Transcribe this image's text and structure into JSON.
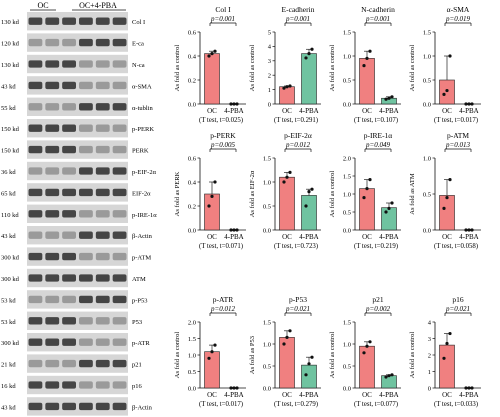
{
  "groups": [
    "OC",
    "OC+4-PBA"
  ],
  "colors": {
    "oc": "#f08080",
    "pba": "#6fc3a0",
    "band": "#2b2b2b",
    "bg": "#d6d6d6"
  },
  "blots": [
    {
      "kd": "130 kd",
      "name": "Col I"
    },
    {
      "kd": "120 kd",
      "name": "E-ca"
    },
    {
      "kd": "130 kd",
      "name": "N-ca"
    },
    {
      "kd": "43 kd",
      "name": "α-SMA"
    },
    {
      "kd": "55 kd",
      "name": "α-tublin"
    },
    {
      "kd": "150 kd",
      "name": "p-PERK"
    },
    {
      "kd": "150 kd",
      "name": "PERK"
    },
    {
      "kd": "36 kd",
      "name": "p-EIF-2α"
    },
    {
      "kd": "65 kd",
      "name": "EIF-2α"
    },
    {
      "kd": "110 kd",
      "name": "p-IRE-1α"
    },
    {
      "kd": "43 kd",
      "name": "β-Actin"
    },
    {
      "kd": "300 kd",
      "name": "p-ATM"
    },
    {
      "kd": "300 kd",
      "name": "ATM"
    },
    {
      "kd": "53 kd",
      "name": "p-P53"
    },
    {
      "kd": "53 kd",
      "name": "P53"
    },
    {
      "kd": "300 kd",
      "name": "p-ATR"
    },
    {
      "kd": "21 kd",
      "name": "p21"
    },
    {
      "kd": "16 kd",
      "name": "p16"
    },
    {
      "kd": "43 kd",
      "name": "β-Actin"
    }
  ],
  "chart_data": [
    {
      "type": "bar",
      "title": "Col I",
      "ylabel": "As fold as control",
      "categories": [
        "OC",
        "4-PBA"
      ],
      "values": [
        0.42,
        0.0
      ],
      "points": [
        [
          0.4,
          0.42,
          0.44
        ],
        [
          0,
          0,
          0
        ]
      ],
      "ylim": [
        0,
        0.6
      ],
      "yticks": [
        "0.0",
        "0.2",
        "0.4",
        "0.6"
      ],
      "pvalue": "p=0.001",
      "test": "(T test, t=0.025)"
    },
    {
      "type": "bar",
      "title": "E-cadherin",
      "ylabel": "As fold as control",
      "categories": [
        "OC",
        "4-PBA"
      ],
      "values": [
        1.2,
        3.5
      ],
      "points": [
        [
          1.1,
          1.2,
          1.25
        ],
        [
          3.2,
          3.5,
          3.8
        ]
      ],
      "ylim": [
        0,
        5
      ],
      "yticks": [
        "0",
        "1",
        "2",
        "3",
        "4",
        "5"
      ],
      "pvalue": "p=0.001",
      "test": "(T test, t=0.291)"
    },
    {
      "type": "bar",
      "title": "N-cadherin",
      "ylabel": "As fold as control",
      "categories": [
        "OC",
        "4-PBA"
      ],
      "values": [
        0.95,
        0.12
      ],
      "points": [
        [
          0.8,
          0.95,
          1.1
        ],
        [
          0.1,
          0.12,
          0.15
        ]
      ],
      "ylim": [
        0,
        1.5
      ],
      "yticks": [
        "0.0",
        "0.5",
        "1.0",
        "1.5"
      ],
      "pvalue": "p=0.001",
      "test": "(T test, t=0.107)"
    },
    {
      "type": "bar",
      "title": "α-SMA",
      "ylabel": "As fold as control",
      "categories": [
        "OC",
        "4-PBA"
      ],
      "values": [
        0.5,
        0.0
      ],
      "points": [
        [
          0.2,
          0.28,
          1.0
        ],
        [
          0,
          0,
          0
        ]
      ],
      "ylim": [
        0,
        1.5
      ],
      "yticks": [
        "0.0",
        "0.5",
        "1.0",
        "1.5"
      ],
      "pvalue": "p=0.019",
      "test": "(T test, t=0.017)"
    },
    {
      "type": "bar",
      "title": "p-PERK",
      "ylabel": "As fold as PERK",
      "categories": [
        "OC",
        "4-PBA"
      ],
      "values": [
        0.3,
        0.0
      ],
      "points": [
        [
          0.2,
          0.28,
          0.4
        ],
        [
          0,
          0,
          0
        ]
      ],
      "ylim": [
        0,
        0.6
      ],
      "yticks": [
        "0.0",
        "0.2",
        "0.4",
        "0.6"
      ],
      "pvalue": "p=0.005",
      "test": "(T test, t=0.071)"
    },
    {
      "type": "bar",
      "title": "p-EIF-2α",
      "ylabel": "As fold as EIF-2α",
      "categories": [
        "OC",
        "4-PBA"
      ],
      "values": [
        1.1,
        0.72
      ],
      "points": [
        [
          1.0,
          1.1,
          1.2
        ],
        [
          0.5,
          0.8,
          0.85
        ]
      ],
      "ylim": [
        0,
        1.5
      ],
      "yticks": [
        "0.0",
        "0.5",
        "1.0",
        "1.5"
      ],
      "pvalue": "p=0.012",
      "test": "(T test, t=0.723)"
    },
    {
      "type": "bar",
      "title": "p-IRE-1α",
      "ylabel": "As fold as control",
      "categories": [
        "OC",
        "4-PBA"
      ],
      "values": [
        1.15,
        0.62
      ],
      "points": [
        [
          0.9,
          1.15,
          1.4
        ],
        [
          0.5,
          0.6,
          0.75
        ]
      ],
      "ylim": [
        0,
        2.0
      ],
      "yticks": [
        "0.0",
        "0.5",
        "1.0",
        "1.5",
        "2.0"
      ],
      "pvalue": "p=0.049",
      "test": "(T test, t=0.219)"
    },
    {
      "type": "bar",
      "title": "p-ATM",
      "ylabel": "As fold as ATM",
      "categories": [
        "OC",
        "4-PBA"
      ],
      "values": [
        0.48,
        0.0
      ],
      "points": [
        [
          0.3,
          0.45,
          0.7
        ],
        [
          0,
          0,
          0
        ]
      ],
      "ylim": [
        0,
        1.0
      ],
      "yticks": [
        "0.0",
        "0.5",
        "1.0"
      ],
      "pvalue": "p=0.013",
      "test": "(T test, t=0.058)"
    },
    {
      "type": "bar",
      "title": "p-ATR",
      "ylabel": "As fold as control",
      "categories": [
        "OC",
        "4-PBA"
      ],
      "values": [
        1.1,
        0.0
      ],
      "points": [
        [
          0.9,
          1.1,
          1.3
        ],
        [
          0,
          0,
          0
        ]
      ],
      "ylim": [
        0,
        2.0
      ],
      "yticks": [
        "0.0",
        "0.5",
        "1.0",
        "1.5",
        "2.0"
      ],
      "pvalue": "p=0.012",
      "test": "(T test, t=0.017)"
    },
    {
      "type": "bar",
      "title": "p-P53",
      "ylabel": "As fold as P53",
      "categories": [
        "OC",
        "4-PBA"
      ],
      "values": [
        1.15,
        0.52
      ],
      "points": [
        [
          1.0,
          1.15,
          1.3
        ],
        [
          0.3,
          0.55,
          0.7
        ]
      ],
      "ylim": [
        0,
        1.5
      ],
      "yticks": [
        "0.0",
        "0.5",
        "1.0",
        "1.5"
      ],
      "pvalue": "p=0.021",
      "test": "(T test, t=0.279)"
    },
    {
      "type": "bar",
      "title": "p21",
      "ylabel": "As fold as control",
      "categories": [
        "OC",
        "4-PBA"
      ],
      "values": [
        0.95,
        0.28
      ],
      "points": [
        [
          0.8,
          0.95,
          1.05
        ],
        [
          0.25,
          0.28,
          0.3
        ]
      ],
      "ylim": [
        0,
        1.5
      ],
      "yticks": [
        "0.0",
        "0.5",
        "1.0",
        "1.5"
      ],
      "pvalue": "p=0.002",
      "test": "(T test, t=0.077)"
    },
    {
      "type": "bar",
      "title": "p16",
      "ylabel": "As fold as control",
      "categories": [
        "OC",
        "4-PBA"
      ],
      "values": [
        2.6,
        0.0
      ],
      "points": [
        [
          1.8,
          2.7,
          3.3
        ],
        [
          0,
          0,
          0
        ]
      ],
      "ylim": [
        0,
        4
      ],
      "yticks": [
        "0",
        "1",
        "2",
        "3",
        "4"
      ],
      "pvalue": "p=0.021",
      "test": "(T test, t=0.033)"
    }
  ]
}
